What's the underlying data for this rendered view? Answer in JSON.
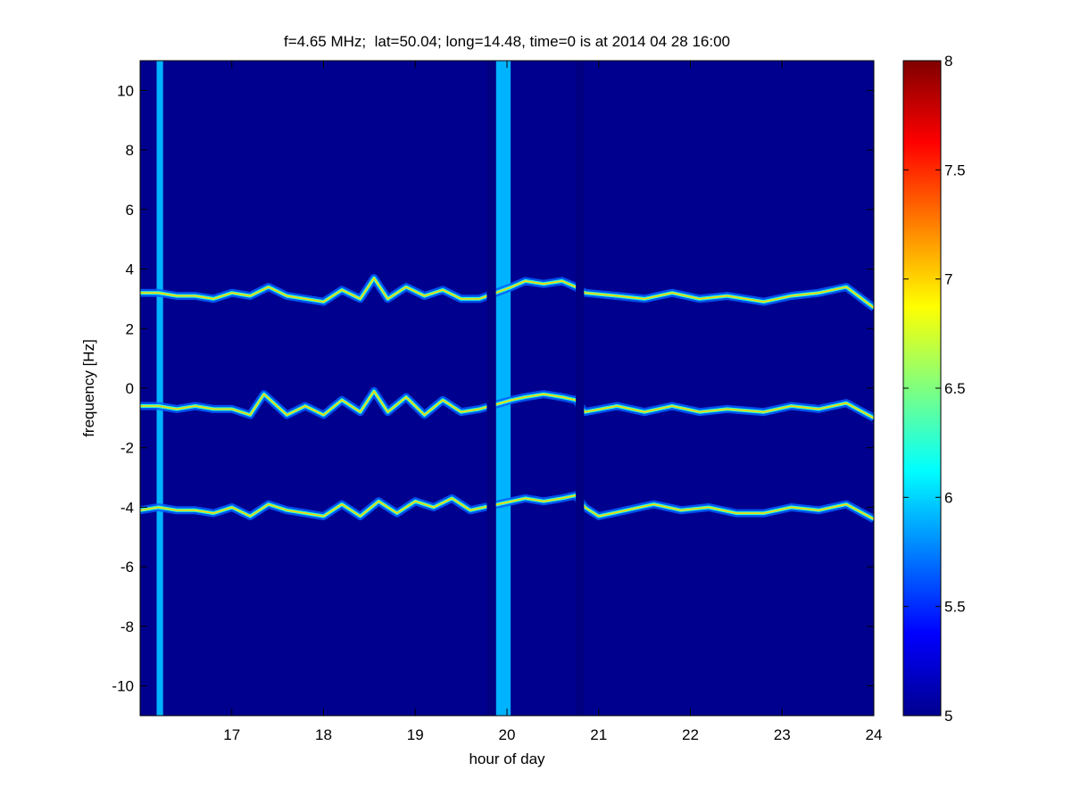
{
  "chart_data": {
    "type": "heatmap",
    "title": "f=4.65 MHz;  lat=50.04; long=14.48, time=0 is at 2014 04 28 16:00",
    "xlabel": "hour of day",
    "ylabel": "frequency [Hz]",
    "xlim": [
      16,
      24
    ],
    "ylim": [
      -11,
      11
    ],
    "x_ticks": [
      17,
      18,
      19,
      20,
      21,
      22,
      23,
      24
    ],
    "y_ticks": [
      -10,
      -8,
      -6,
      -4,
      -2,
      0,
      2,
      4,
      6,
      8,
      10
    ],
    "colorbar": {
      "range": [
        5,
        8
      ],
      "ticks": [
        5,
        5.5,
        6,
        6.5,
        7,
        7.5,
        8
      ],
      "colormap": "jet"
    },
    "background_value": 5,
    "broadband_bands": [
      {
        "x_start": 16.18,
        "x_end": 16.25,
        "value": 5.9
      },
      {
        "x_start": 19.88,
        "x_end": 20.04,
        "value": 5.9
      }
    ],
    "data_gaps": [
      {
        "x_start": 19.78,
        "x_end": 19.88
      },
      {
        "x_start": 20.75,
        "x_end": 20.84
      }
    ],
    "traces": [
      {
        "name": "upper",
        "value": 7.0,
        "x": [
          16.0,
          16.2,
          16.4,
          16.6,
          16.8,
          17.0,
          17.2,
          17.4,
          17.6,
          17.8,
          18.0,
          18.2,
          18.4,
          18.55,
          18.7,
          18.9,
          19.1,
          19.3,
          19.5,
          19.7,
          20.05,
          20.2,
          20.4,
          20.6,
          20.75,
          20.85,
          21.2,
          21.5,
          21.8,
          22.1,
          22.4,
          22.8,
          23.1,
          23.4,
          23.7,
          24.0
        ],
        "y": [
          3.2,
          3.2,
          3.1,
          3.1,
          3.0,
          3.2,
          3.1,
          3.4,
          3.1,
          3.0,
          2.9,
          3.3,
          3.0,
          3.7,
          3.0,
          3.4,
          3.1,
          3.3,
          3.0,
          3.0,
          3.4,
          3.6,
          3.5,
          3.6,
          3.4,
          3.2,
          3.1,
          3.0,
          3.2,
          3.0,
          3.1,
          2.9,
          3.1,
          3.2,
          3.4,
          2.7
        ]
      },
      {
        "name": "middle",
        "value": 7.0,
        "x": [
          16.0,
          16.2,
          16.4,
          16.6,
          16.8,
          17.0,
          17.2,
          17.35,
          17.6,
          17.8,
          18.0,
          18.2,
          18.4,
          18.55,
          18.7,
          18.9,
          19.1,
          19.3,
          19.5,
          19.7,
          20.05,
          20.2,
          20.4,
          20.6,
          20.75,
          20.85,
          21.2,
          21.5,
          21.8,
          22.1,
          22.4,
          22.8,
          23.1,
          23.4,
          23.7,
          24.0
        ],
        "y": [
          -0.6,
          -0.6,
          -0.7,
          -0.6,
          -0.7,
          -0.7,
          -0.9,
          -0.2,
          -0.9,
          -0.6,
          -0.9,
          -0.4,
          -0.8,
          -0.1,
          -0.8,
          -0.3,
          -0.9,
          -0.4,
          -0.8,
          -0.7,
          -0.4,
          -0.3,
          -0.2,
          -0.3,
          -0.4,
          -0.8,
          -0.6,
          -0.8,
          -0.6,
          -0.8,
          -0.7,
          -0.8,
          -0.6,
          -0.7,
          -0.5,
          -1.0
        ]
      },
      {
        "name": "lower",
        "value": 7.0,
        "x": [
          16.0,
          16.2,
          16.4,
          16.6,
          16.8,
          17.0,
          17.2,
          17.4,
          17.6,
          17.8,
          18.0,
          18.2,
          18.4,
          18.6,
          18.8,
          19.0,
          19.2,
          19.4,
          19.6,
          19.75,
          20.05,
          20.2,
          20.4,
          20.6,
          20.75,
          20.85,
          21.0,
          21.3,
          21.6,
          21.9,
          22.2,
          22.5,
          22.8,
          23.1,
          23.4,
          23.7,
          24.0
        ],
        "y": [
          -4.1,
          -4.0,
          -4.1,
          -4.1,
          -4.2,
          -4.0,
          -4.3,
          -3.9,
          -4.1,
          -4.2,
          -4.3,
          -3.9,
          -4.3,
          -3.8,
          -4.2,
          -3.8,
          -4.0,
          -3.7,
          -4.1,
          -4.0,
          -3.8,
          -3.7,
          -3.8,
          -3.7,
          -3.6,
          -4.0,
          -4.3,
          -4.1,
          -3.9,
          -4.1,
          -4.0,
          -4.2,
          -4.2,
          -4.0,
          -4.1,
          -3.9,
          -4.4
        ]
      }
    ]
  }
}
